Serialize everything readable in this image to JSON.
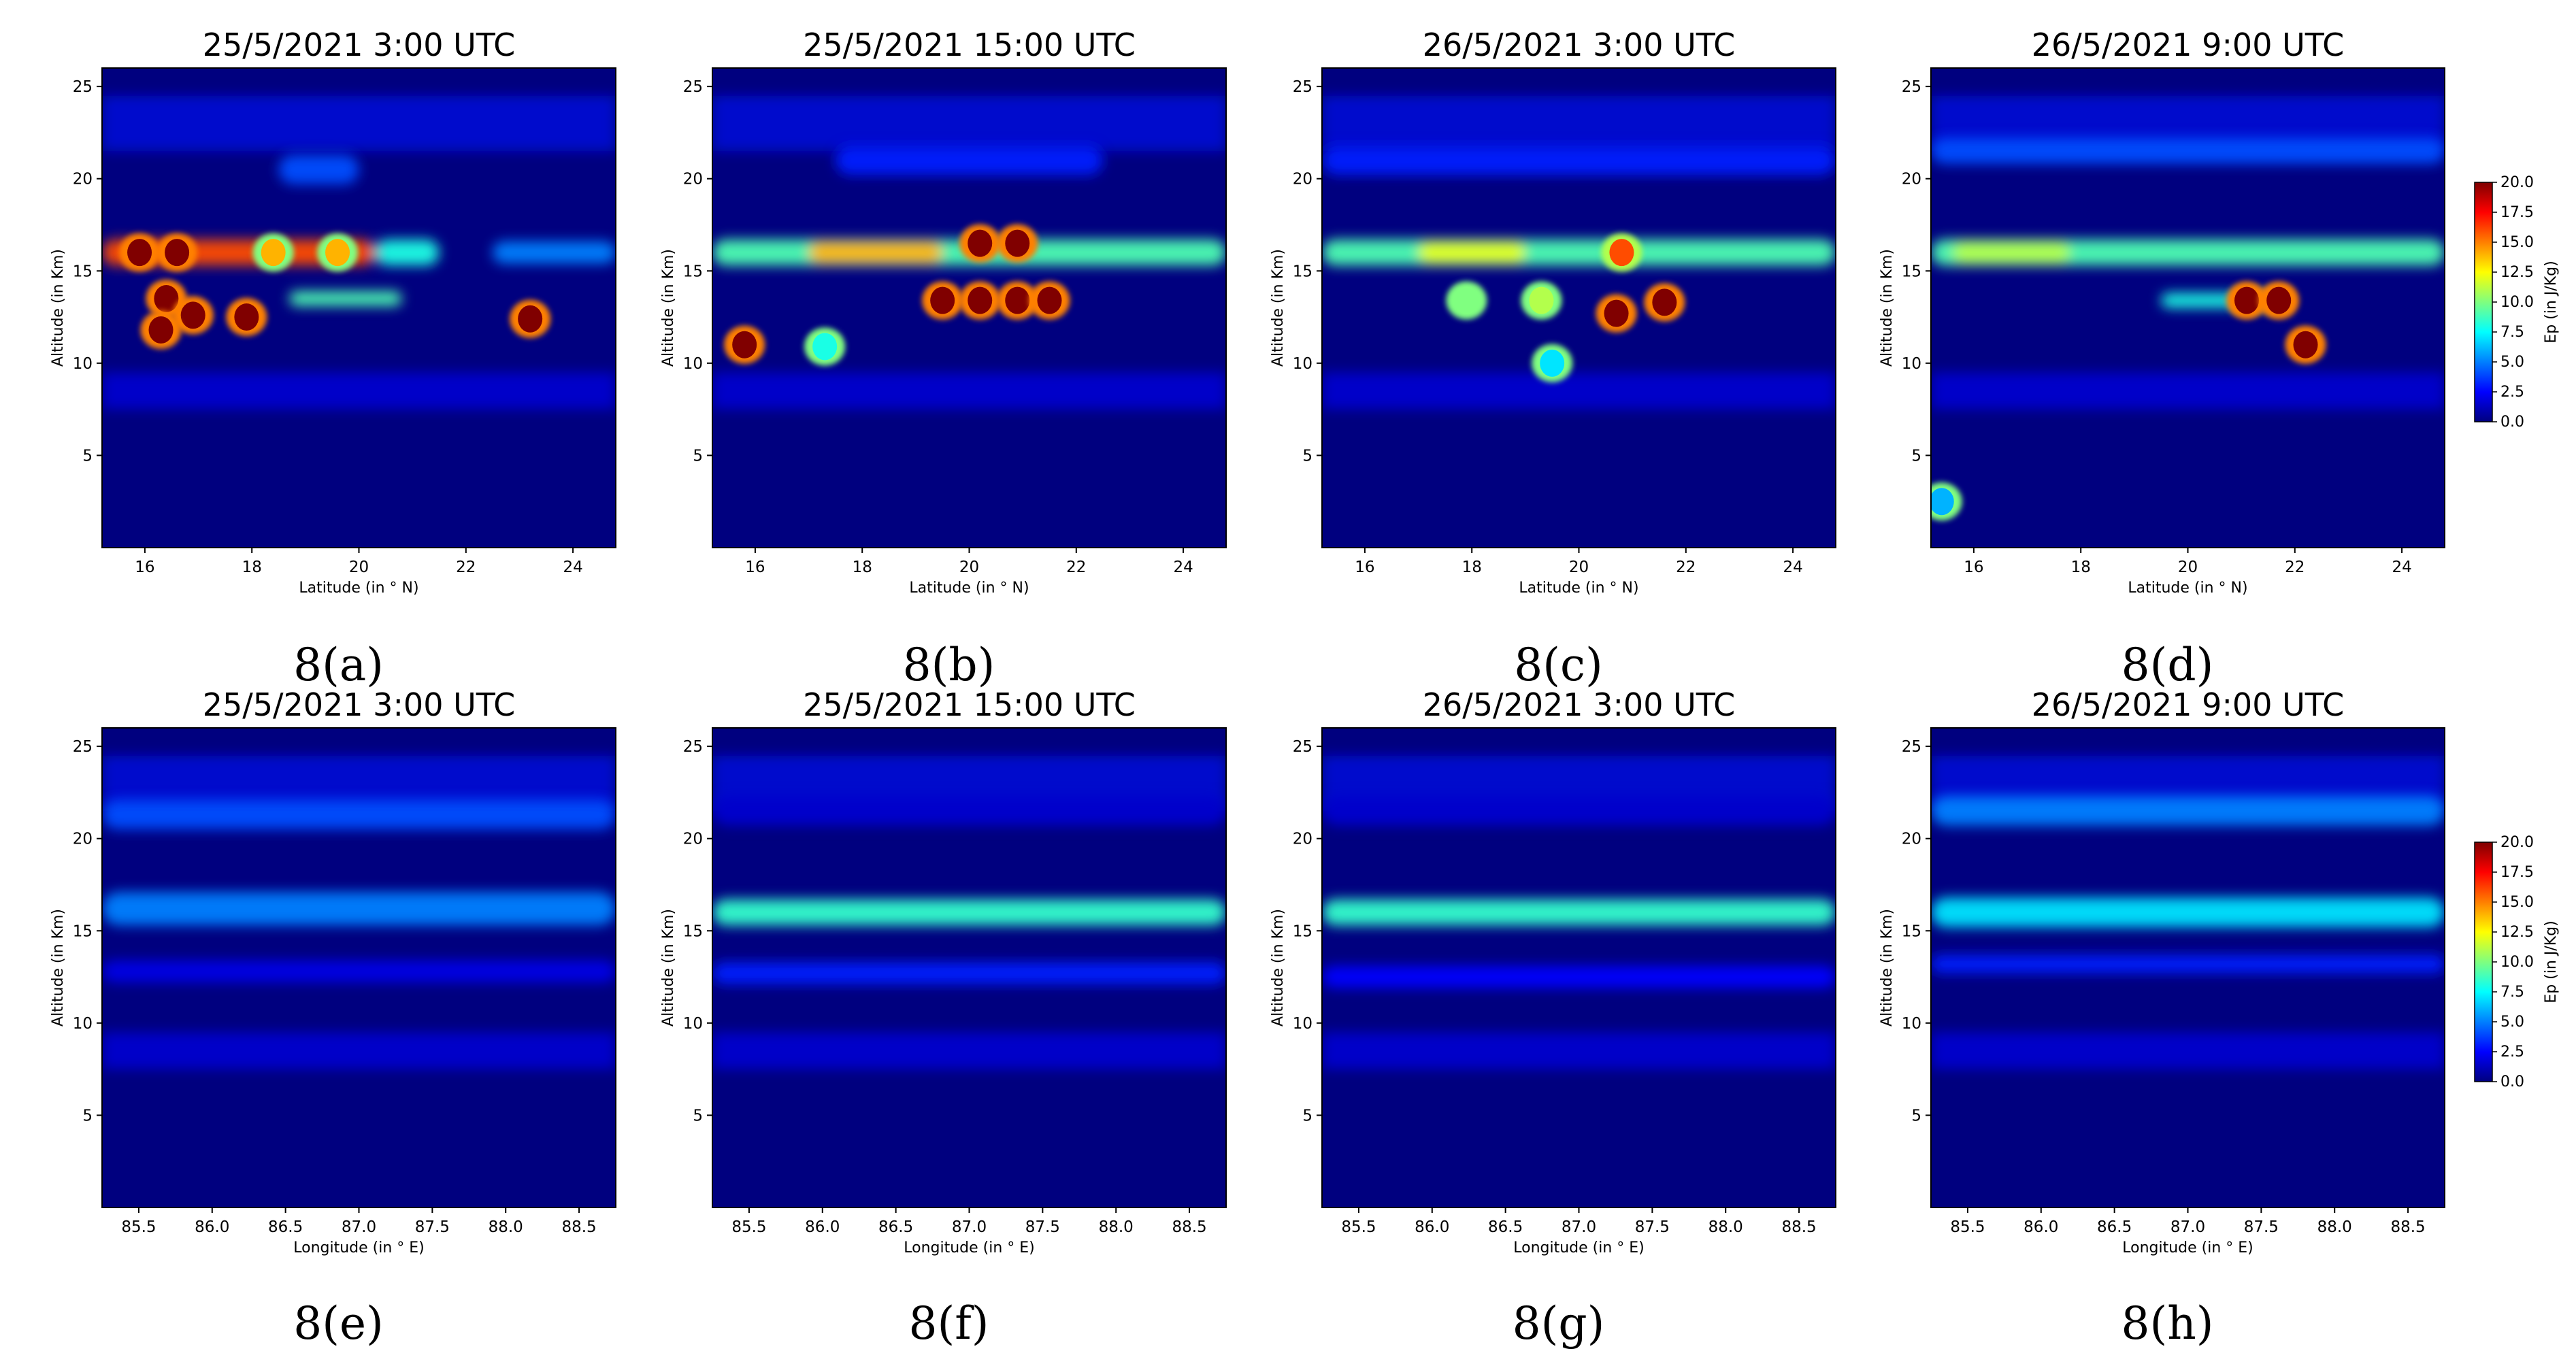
{
  "colorbar": {
    "label": "Ep (in J/Kg)",
    "ticks": [
      "0.0",
      "2.5",
      "5.0",
      "7.5",
      "10.0",
      "12.5",
      "15.0",
      "17.5",
      "20.0"
    ],
    "range": [
      0,
      20
    ],
    "colormap": "jet"
  },
  "colors": {
    "background": "#00007f",
    "jet": [
      "#00007f",
      "#0000ff",
      "#007fff",
      "#00ffff",
      "#7fff7f",
      "#ffff00",
      "#ff7f00",
      "#ff0000",
      "#7f0000"
    ]
  },
  "chart_data": [
    {
      "type": "heatmap",
      "panel_label": "8(a)",
      "title": "25/5/2021  3:00 UTC",
      "xlabel": "Latitude (in $^\\circ$N)",
      "xlabel_display": "Latitude (in ° N)",
      "ylabel": "Altitude (in Km)",
      "xlim": [
        15.2,
        24.8
      ],
      "ylim": [
        0,
        26
      ],
      "xticks": [
        "16",
        "18",
        "20",
        "22",
        "24"
      ],
      "yticks": [
        "5",
        "10",
        "15",
        "20",
        "25"
      ],
      "colorbar": false,
      "bands": [
        {
          "y": 16.0,
          "x_from": 15.2,
          "x_to": 20.3,
          "value": 16,
          "width": 0.7
        },
        {
          "y": 16.0,
          "x_from": 20.3,
          "x_to": 21.5,
          "value": 8,
          "width": 0.7
        },
        {
          "y": 16.0,
          "x_from": 22.5,
          "x_to": 24.8,
          "value": 5,
          "width": 0.6
        },
        {
          "y": 20.5,
          "x_from": 18.5,
          "x_to": 20.0,
          "value": 4,
          "width": 0.8
        },
        {
          "y": 13.5,
          "x_from": 18.7,
          "x_to": 20.8,
          "value": 9,
          "width": 0.4
        }
      ],
      "hotspots": [
        {
          "x": 15.9,
          "y": 16.0,
          "value": 20
        },
        {
          "x": 16.6,
          "y": 16.0,
          "value": 20
        },
        {
          "x": 18.4,
          "y": 16.0,
          "value": 14
        },
        {
          "x": 19.6,
          "y": 16.0,
          "value": 14
        },
        {
          "x": 16.4,
          "y": 13.5,
          "value": 20
        },
        {
          "x": 16.9,
          "y": 12.6,
          "value": 20
        },
        {
          "x": 16.3,
          "y": 11.8,
          "value": 20
        },
        {
          "x": 17.9,
          "y": 12.5,
          "value": 20
        },
        {
          "x": 23.2,
          "y": 12.4,
          "value": 20
        }
      ]
    },
    {
      "type": "heatmap",
      "panel_label": "8(b)",
      "title": "25/5/2021  15:00 UTC",
      "xlabel": "Latitude (in $^\\circ$N)",
      "xlabel_display": "Latitude (in ° N)",
      "ylabel": "Altitude (in Km)",
      "xlim": [
        15.2,
        24.8
      ],
      "ylim": [
        0,
        26
      ],
      "xticks": [
        "16",
        "18",
        "20",
        "22",
        "24"
      ],
      "yticks": [
        "5",
        "10",
        "15",
        "20",
        "25"
      ],
      "colorbar": false,
      "bands": [
        {
          "y": 16.0,
          "x_from": 15.2,
          "x_to": 24.8,
          "value": 9,
          "width": 0.7
        },
        {
          "y": 16.0,
          "x_from": 17.0,
          "x_to": 19.5,
          "value": 14,
          "width": 0.6
        },
        {
          "y": 21.0,
          "x_from": 17.5,
          "x_to": 22.5,
          "value": 3,
          "width": 0.8
        }
      ],
      "hotspots": [
        {
          "x": 20.9,
          "y": 16.5,
          "value": 20
        },
        {
          "x": 20.2,
          "y": 16.5,
          "value": 20
        },
        {
          "x": 15.8,
          "y": 11.0,
          "value": 20
        },
        {
          "x": 19.5,
          "y": 13.4,
          "value": 20
        },
        {
          "x": 20.2,
          "y": 13.4,
          "value": 20
        },
        {
          "x": 20.9,
          "y": 13.4,
          "value": 20
        },
        {
          "x": 21.5,
          "y": 13.4,
          "value": 20
        },
        {
          "x": 17.3,
          "y": 10.9,
          "value": 8
        }
      ]
    },
    {
      "type": "heatmap",
      "panel_label": "8(c)",
      "title": "26/5/2021  3:00 UTC",
      "xlabel": "Latitude (in $^\\circ$N)",
      "xlabel_display": "Latitude (in ° N)",
      "ylabel": "Altitude (in Km)",
      "xlim": [
        15.2,
        24.8
      ],
      "ylim": [
        0,
        26
      ],
      "xticks": [
        "16",
        "18",
        "20",
        "22",
        "24"
      ],
      "yticks": [
        "5",
        "10",
        "15",
        "20",
        "25"
      ],
      "colorbar": false,
      "bands": [
        {
          "y": 16.0,
          "x_from": 15.2,
          "x_to": 24.8,
          "value": 9,
          "width": 0.7
        },
        {
          "y": 16.0,
          "x_from": 17.0,
          "x_to": 19.0,
          "value": 12,
          "width": 0.6
        },
        {
          "y": 21.0,
          "x_from": 15.2,
          "x_to": 24.8,
          "value": 3,
          "width": 0.8
        }
      ],
      "hotspots": [
        {
          "x": 20.8,
          "y": 16.0,
          "value": 16
        },
        {
          "x": 17.9,
          "y": 13.4,
          "value": 10
        },
        {
          "x": 19.3,
          "y": 13.4,
          "value": 11
        },
        {
          "x": 20.7,
          "y": 12.7,
          "value": 20
        },
        {
          "x": 21.6,
          "y": 13.3,
          "value": 20
        },
        {
          "x": 19.5,
          "y": 10.0,
          "value": 7
        }
      ]
    },
    {
      "type": "heatmap",
      "panel_label": "8(d)",
      "title": "26/5/2021  9:00 UTC",
      "xlabel": "Latitude (in $^\\circ$N)",
      "xlabel_display": "Latitude (in ° N)",
      "ylabel": "Altitude (in Km)",
      "xlim": [
        15.2,
        24.8
      ],
      "ylim": [
        0,
        26
      ],
      "xticks": [
        "16",
        "18",
        "20",
        "22",
        "24"
      ],
      "yticks": [
        "5",
        "10",
        "15",
        "20",
        "25"
      ],
      "colorbar": true,
      "bands": [
        {
          "y": 16.0,
          "x_from": 15.2,
          "x_to": 24.8,
          "value": 9,
          "width": 0.7
        },
        {
          "y": 16.0,
          "x_from": 15.6,
          "x_to": 17.8,
          "value": 11,
          "width": 0.6
        },
        {
          "y": 21.5,
          "x_from": 15.2,
          "x_to": 24.8,
          "value": 4,
          "width": 0.7
        },
        {
          "y": 13.4,
          "x_from": 19.5,
          "x_to": 21.8,
          "value": 8,
          "width": 0.4
        }
      ],
      "hotspots": [
        {
          "x": 21.1,
          "y": 13.4,
          "value": 20
        },
        {
          "x": 21.7,
          "y": 13.4,
          "value": 20
        },
        {
          "x": 22.2,
          "y": 11.0,
          "value": 20
        },
        {
          "x": 15.4,
          "y": 2.5,
          "value": 6
        }
      ]
    },
    {
      "type": "heatmap",
      "panel_label": "8(e)",
      "title": "25/5/2021  3:00 UTC",
      "xlabel": "Longitude (in $^\\circ$E)",
      "xlabel_display": "Longitude (in ° E)",
      "ylabel": "Altitude (in Km)",
      "xlim": [
        85.25,
        88.75
      ],
      "ylim": [
        0,
        26
      ],
      "xticks": [
        "85.5",
        "86.0",
        "86.5",
        "87.0",
        "87.5",
        "88.0",
        "88.5"
      ],
      "yticks": [
        "5",
        "10",
        "15",
        "20",
        "25"
      ],
      "colorbar": false,
      "bands": [
        {
          "y": 16.2,
          "x_from": 85.25,
          "x_to": 88.75,
          "value": 5,
          "width": 0.9
        },
        {
          "y": 21.3,
          "x_from": 85.25,
          "x_to": 88.75,
          "value": 4,
          "width": 0.8
        },
        {
          "y": 12.8,
          "x_from": 85.25,
          "x_to": 88.75,
          "value": 2,
          "width": 0.6
        }
      ],
      "hotspots": []
    },
    {
      "type": "heatmap",
      "panel_label": "8(f)",
      "title": "25/5/2021  15:00 UTC",
      "xlabel": "Longitude (in $^\\circ$E)",
      "xlabel_display": "Longitude (in ° E)",
      "ylabel": "Altitude (in Km)",
      "xlim": [
        85.25,
        88.75
      ],
      "ylim": [
        0,
        26
      ],
      "xticks": [
        "85.5",
        "86.0",
        "86.5",
        "87.0",
        "87.5",
        "88.0",
        "88.5"
      ],
      "yticks": [
        "5",
        "10",
        "15",
        "20",
        "25"
      ],
      "colorbar": false,
      "bands": [
        {
          "y": 16.0,
          "x_from": 85.25,
          "x_to": 88.75,
          "value": 8.5,
          "width": 0.7
        },
        {
          "y": 12.7,
          "x_from": 85.25,
          "x_to": 88.75,
          "value": 3,
          "width": 0.6
        },
        {
          "y": 21.5,
          "x_from": 85.25,
          "x_to": 88.75,
          "value": 1.5,
          "width": 0.8
        }
      ],
      "hotspots": []
    },
    {
      "type": "heatmap",
      "panel_label": "8(g)",
      "title": "26/5/2021  3:00 UTC",
      "xlabel": "Longitude (in $^\\circ$E)",
      "xlabel_display": "Longitude (in ° E)",
      "ylabel": "Altitude (in Km)",
      "xlim": [
        85.25,
        88.75
      ],
      "ylim": [
        0,
        26
      ],
      "xticks": [
        "85.5",
        "86.0",
        "86.5",
        "87.0",
        "87.5",
        "88.0",
        "88.5"
      ],
      "yticks": [
        "5",
        "10",
        "15",
        "20",
        "25"
      ],
      "colorbar": false,
      "bands": [
        {
          "y": 16.0,
          "x_from": 85.25,
          "x_to": 88.75,
          "value": 8.5,
          "width": 0.7
        },
        {
          "y": 12.5,
          "x_from": 85.25,
          "x_to": 88.75,
          "value": 2.5,
          "width": 0.6
        },
        {
          "y": 21.5,
          "x_from": 85.25,
          "x_to": 88.75,
          "value": 1.5,
          "width": 0.8
        }
      ],
      "hotspots": []
    },
    {
      "type": "heatmap",
      "panel_label": "8(h)",
      "title": "26/5/2021  9:00 UTC",
      "xlabel": "Longitude (in $^\\circ$E)",
      "xlabel_display": "Longitude (in ° E)",
      "ylabel": "Altitude (in Km)",
      "xlim": [
        85.25,
        88.75
      ],
      "ylim": [
        0,
        26
      ],
      "xticks": [
        "85.5",
        "86.0",
        "86.5",
        "87.0",
        "87.5",
        "88.0",
        "88.5"
      ],
      "yticks": [
        "5",
        "10",
        "15",
        "20",
        "25"
      ],
      "colorbar": true,
      "bands": [
        {
          "y": 16.0,
          "x_from": 85.25,
          "x_to": 88.75,
          "value": 7,
          "width": 0.8
        },
        {
          "y": 21.5,
          "x_from": 85.25,
          "x_to": 88.75,
          "value": 5,
          "width": 0.8
        },
        {
          "y": 13.2,
          "x_from": 85.25,
          "x_to": 88.75,
          "value": 3,
          "width": 0.5
        }
      ],
      "hotspots": []
    }
  ]
}
